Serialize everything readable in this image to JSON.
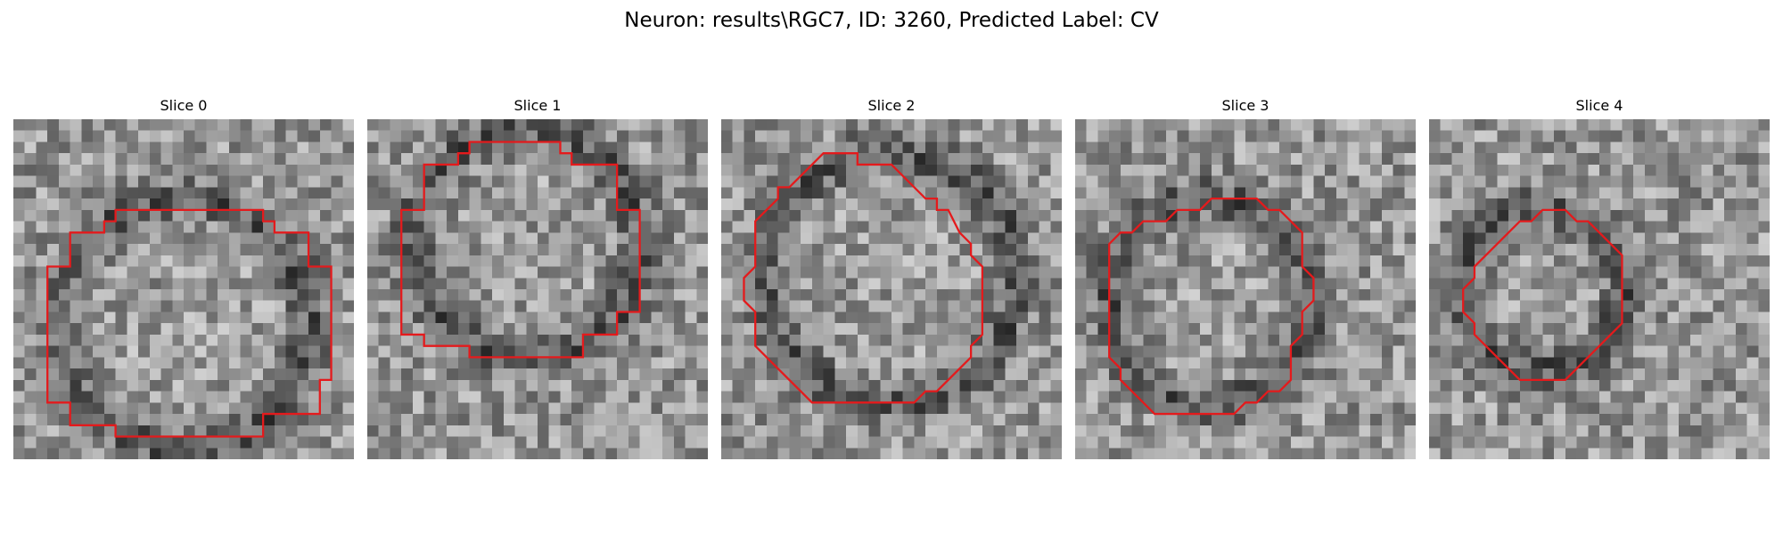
{
  "figure": {
    "title": "Neuron: results\\RGC7, ID: 3260, Predicted Label: CV"
  },
  "panels": [
    {
      "title": "Slice 0",
      "seed": 11
    },
    {
      "title": "Slice 1",
      "seed": 23
    },
    {
      "title": "Slice 2",
      "seed": 37
    },
    {
      "title": "Slice 3",
      "seed": 51
    },
    {
      "title": "Slice 4",
      "seed": 73
    }
  ],
  "colors": {
    "contour": "#e41a1c"
  }
}
